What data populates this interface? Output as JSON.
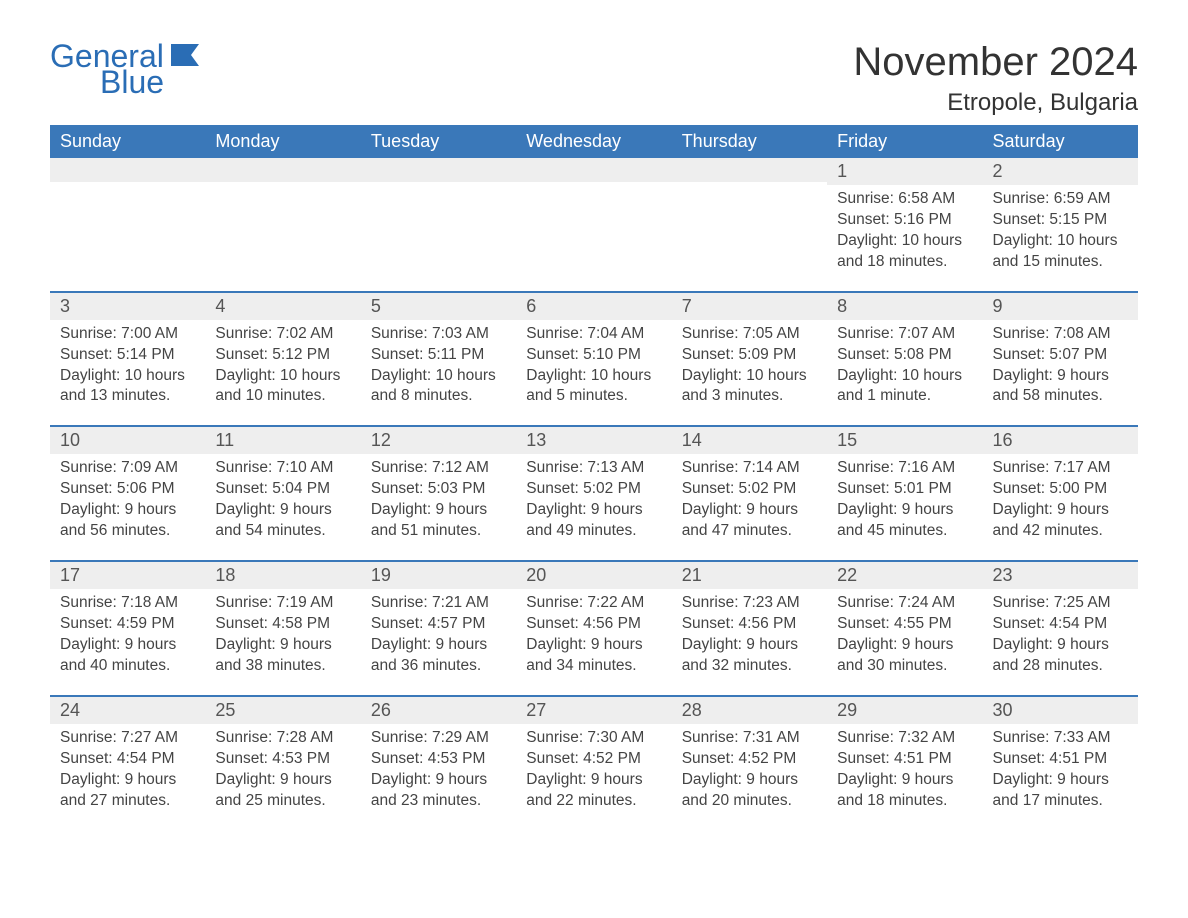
{
  "brand": {
    "part1": "General",
    "part2": "Blue",
    "logo_color": "#2a6db5"
  },
  "title": "November 2024",
  "location": "Etropole, Bulgaria",
  "colors": {
    "header_bg": "#3a78b9",
    "header_text": "#ffffff",
    "row_border": "#3a78b9",
    "daynum_bg": "#eeeeee",
    "text": "#444444",
    "title_text": "#333333",
    "page_bg": "#ffffff"
  },
  "weekdays": [
    "Sunday",
    "Monday",
    "Tuesday",
    "Wednesday",
    "Thursday",
    "Friday",
    "Saturday"
  ],
  "leading_empty": 5,
  "days": [
    {
      "n": 1,
      "sunrise": "6:58 AM",
      "sunset": "5:16 PM",
      "daylight": "10 hours and 18 minutes."
    },
    {
      "n": 2,
      "sunrise": "6:59 AM",
      "sunset": "5:15 PM",
      "daylight": "10 hours and 15 minutes."
    },
    {
      "n": 3,
      "sunrise": "7:00 AM",
      "sunset": "5:14 PM",
      "daylight": "10 hours and 13 minutes."
    },
    {
      "n": 4,
      "sunrise": "7:02 AM",
      "sunset": "5:12 PM",
      "daylight": "10 hours and 10 minutes."
    },
    {
      "n": 5,
      "sunrise": "7:03 AM",
      "sunset": "5:11 PM",
      "daylight": "10 hours and 8 minutes."
    },
    {
      "n": 6,
      "sunrise": "7:04 AM",
      "sunset": "5:10 PM",
      "daylight": "10 hours and 5 minutes."
    },
    {
      "n": 7,
      "sunrise": "7:05 AM",
      "sunset": "5:09 PM",
      "daylight": "10 hours and 3 minutes."
    },
    {
      "n": 8,
      "sunrise": "7:07 AM",
      "sunset": "5:08 PM",
      "daylight": "10 hours and 1 minute."
    },
    {
      "n": 9,
      "sunrise": "7:08 AM",
      "sunset": "5:07 PM",
      "daylight": "9 hours and 58 minutes."
    },
    {
      "n": 10,
      "sunrise": "7:09 AM",
      "sunset": "5:06 PM",
      "daylight": "9 hours and 56 minutes."
    },
    {
      "n": 11,
      "sunrise": "7:10 AM",
      "sunset": "5:04 PM",
      "daylight": "9 hours and 54 minutes."
    },
    {
      "n": 12,
      "sunrise": "7:12 AM",
      "sunset": "5:03 PM",
      "daylight": "9 hours and 51 minutes."
    },
    {
      "n": 13,
      "sunrise": "7:13 AM",
      "sunset": "5:02 PM",
      "daylight": "9 hours and 49 minutes."
    },
    {
      "n": 14,
      "sunrise": "7:14 AM",
      "sunset": "5:02 PM",
      "daylight": "9 hours and 47 minutes."
    },
    {
      "n": 15,
      "sunrise": "7:16 AM",
      "sunset": "5:01 PM",
      "daylight": "9 hours and 45 minutes."
    },
    {
      "n": 16,
      "sunrise": "7:17 AM",
      "sunset": "5:00 PM",
      "daylight": "9 hours and 42 minutes."
    },
    {
      "n": 17,
      "sunrise": "7:18 AM",
      "sunset": "4:59 PM",
      "daylight": "9 hours and 40 minutes."
    },
    {
      "n": 18,
      "sunrise": "7:19 AM",
      "sunset": "4:58 PM",
      "daylight": "9 hours and 38 minutes."
    },
    {
      "n": 19,
      "sunrise": "7:21 AM",
      "sunset": "4:57 PM",
      "daylight": "9 hours and 36 minutes."
    },
    {
      "n": 20,
      "sunrise": "7:22 AM",
      "sunset": "4:56 PM",
      "daylight": "9 hours and 34 minutes."
    },
    {
      "n": 21,
      "sunrise": "7:23 AM",
      "sunset": "4:56 PM",
      "daylight": "9 hours and 32 minutes."
    },
    {
      "n": 22,
      "sunrise": "7:24 AM",
      "sunset": "4:55 PM",
      "daylight": "9 hours and 30 minutes."
    },
    {
      "n": 23,
      "sunrise": "7:25 AM",
      "sunset": "4:54 PM",
      "daylight": "9 hours and 28 minutes."
    },
    {
      "n": 24,
      "sunrise": "7:27 AM",
      "sunset": "4:54 PM",
      "daylight": "9 hours and 27 minutes."
    },
    {
      "n": 25,
      "sunrise": "7:28 AM",
      "sunset": "4:53 PM",
      "daylight": "9 hours and 25 minutes."
    },
    {
      "n": 26,
      "sunrise": "7:29 AM",
      "sunset": "4:53 PM",
      "daylight": "9 hours and 23 minutes."
    },
    {
      "n": 27,
      "sunrise": "7:30 AM",
      "sunset": "4:52 PM",
      "daylight": "9 hours and 22 minutes."
    },
    {
      "n": 28,
      "sunrise": "7:31 AM",
      "sunset": "4:52 PM",
      "daylight": "9 hours and 20 minutes."
    },
    {
      "n": 29,
      "sunrise": "7:32 AM",
      "sunset": "4:51 PM",
      "daylight": "9 hours and 18 minutes."
    },
    {
      "n": 30,
      "sunrise": "7:33 AM",
      "sunset": "4:51 PM",
      "daylight": "9 hours and 17 minutes."
    }
  ],
  "labels": {
    "sunrise": "Sunrise:",
    "sunset": "Sunset:",
    "daylight": "Daylight:"
  }
}
